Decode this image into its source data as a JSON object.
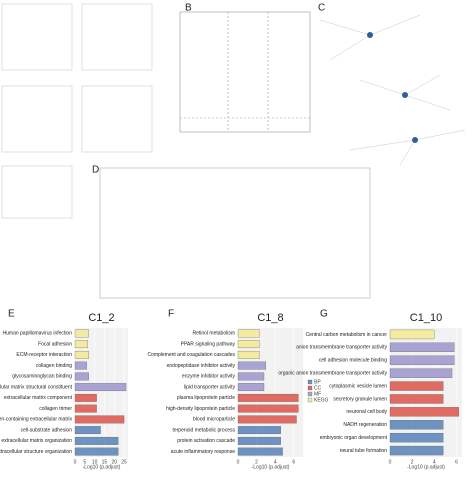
{
  "panel_labels": [
    "B",
    "C",
    "D",
    "E",
    "F",
    "G"
  ],
  "chart_data": [
    {
      "type": "bar",
      "title": "C1_2",
      "x_label": "-Log10 (p.adjust)",
      "categories": [
        "Human papillomavirus infection",
        "Focal adhesion",
        "ECM-receptor interaction",
        "collagen binding",
        "glycosaminoglycan binding",
        "extracellular matrix structural constituent",
        "extracellular matrix component",
        "collagen trimer",
        "collagen-containing extracellular matrix",
        "cell-substrate adhesion",
        "extracellular matrix organization",
        "extracellular structure organization"
      ],
      "series": [
        {
          "name": "BP",
          "color": "#6f93c0",
          "values": [
            null,
            null,
            null,
            null,
            null,
            null,
            null,
            null,
            null,
            13,
            22,
            22
          ]
        },
        {
          "name": "CC",
          "color": "#e06b63",
          "values": [
            null,
            null,
            null,
            null,
            null,
            null,
            11,
            11,
            25,
            null,
            null,
            null
          ]
        },
        {
          "name": "MF",
          "color": "#a9a3d3",
          "values": [
            null,
            null,
            null,
            6,
            7,
            26,
            null,
            null,
            null,
            null,
            null,
            null
          ]
        },
        {
          "name": "KEGG",
          "color": "#f3eca0",
          "values": [
            7,
            6.5,
            7,
            null,
            null,
            null,
            null,
            null,
            null,
            null,
            null,
            null
          ]
        }
      ],
      "xlim": [
        0,
        27
      ],
      "xticks": [
        0,
        5,
        10,
        15,
        20,
        25
      ],
      "legend": false
    },
    {
      "type": "bar",
      "title": "C1_8",
      "x_label": "-Log10 (p.adjust)",
      "categories": [
        "Retinol metabolism",
        "PPAR signaling pathway",
        "Complement and coagulation cascades",
        "endopeptidase inhibitor activity",
        "enzyme inhibitor activity",
        "lipid transporter activity",
        "plasma lipoprotein particle",
        "high-density lipoprotein particle",
        "blood microparticle",
        "terpenoid metabolic process",
        "protein activation cascade",
        "acute inflammatory response"
      ],
      "series": [
        {
          "name": "BP",
          "color": "#6f93c0",
          "values": [
            null,
            null,
            null,
            null,
            null,
            null,
            null,
            null,
            null,
            4.6,
            4.6,
            4.8
          ]
        },
        {
          "name": "CC",
          "color": "#e06b63",
          "values": [
            null,
            null,
            null,
            null,
            null,
            null,
            6.5,
            6.5,
            6.3,
            null,
            null,
            null
          ]
        },
        {
          "name": "MF",
          "color": "#a9a3d3",
          "values": [
            null,
            null,
            null,
            3,
            2.8,
            2.8,
            null,
            null,
            null,
            null,
            null,
            null
          ]
        },
        {
          "name": "KEGG",
          "color": "#f3eca0",
          "values": [
            2.3,
            2.3,
            2.3,
            null,
            null,
            null,
            null,
            null,
            null,
            null,
            null,
            null
          ]
        }
      ],
      "xlim": [
        0,
        7
      ],
      "xticks": [
        0,
        2,
        4,
        6
      ],
      "legend": true
    },
    {
      "type": "bar",
      "title": "C1_10",
      "x_label": "-Log10 (p.adjust)",
      "categories": [
        "Central carbon metabolism in cancer",
        "anion transmembrane transporter activity",
        "cell adhesion molecule binding",
        "organic anion transmembrane transporter activity",
        "cytoplasmic vesicle lumen",
        "secretory granule lumen",
        "neuronal cell body",
        "NADH regeneration",
        "embryonic organ development",
        "neural tube formation"
      ],
      "series": [
        {
          "name": "BP",
          "color": "#6f93c0",
          "values": [
            null,
            null,
            null,
            null,
            null,
            null,
            null,
            4.8,
            4.8,
            4.8
          ]
        },
        {
          "name": "CC",
          "color": "#e06b63",
          "values": [
            null,
            null,
            null,
            null,
            4.8,
            4.8,
            6.2,
            null,
            null,
            null
          ]
        },
        {
          "name": "MF",
          "color": "#a9a3d3",
          "values": [
            null,
            5.8,
            5.8,
            5.6,
            null,
            null,
            null,
            null,
            null,
            null
          ]
        },
        {
          "name": "KEGG",
          "color": "#f3eca0",
          "values": [
            4,
            null,
            null,
            null,
            null,
            null,
            null,
            null,
            null,
            null
          ]
        }
      ],
      "xlim": [
        0,
        6.5
      ],
      "xticks": [
        0,
        2,
        4,
        6
      ],
      "legend": false
    }
  ]
}
